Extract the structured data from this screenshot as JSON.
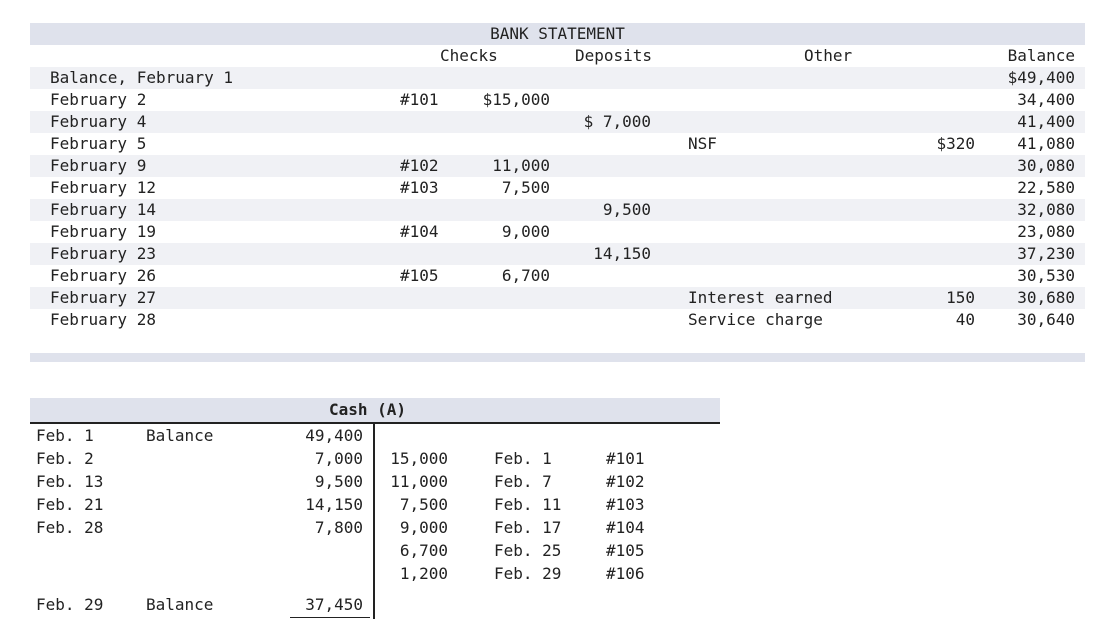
{
  "bank_statement": {
    "title": "BANK STATEMENT",
    "headers": {
      "checks": "Checks",
      "deposits": "Deposits",
      "other": "Other",
      "balance": "Balance"
    },
    "rows": [
      {
        "date": "Balance, February 1",
        "check_no": "",
        "check_amt": "",
        "deposit": "",
        "other_desc": "",
        "other_amt": "",
        "balance": "$49,400"
      },
      {
        "date": "February 2",
        "check_no": "#101",
        "check_amt": "$15,000",
        "deposit": "",
        "other_desc": "",
        "other_amt": "",
        "balance": "34,400"
      },
      {
        "date": "February 4",
        "check_no": "",
        "check_amt": "",
        "deposit": "$ 7,000",
        "other_desc": "",
        "other_amt": "",
        "balance": "41,400"
      },
      {
        "date": "February 5",
        "check_no": "",
        "check_amt": "",
        "deposit": "",
        "other_desc": "NSF",
        "other_amt": "$320",
        "balance": "41,080"
      },
      {
        "date": "February 9",
        "check_no": "#102",
        "check_amt": "11,000",
        "deposit": "",
        "other_desc": "",
        "other_amt": "",
        "balance": "30,080"
      },
      {
        "date": "February 12",
        "check_no": "#103",
        "check_amt": "7,500",
        "deposit": "",
        "other_desc": "",
        "other_amt": "",
        "balance": "22,580"
      },
      {
        "date": "February 14",
        "check_no": "",
        "check_amt": "",
        "deposit": "9,500",
        "other_desc": "",
        "other_amt": "",
        "balance": "32,080"
      },
      {
        "date": "February 19",
        "check_no": "#104",
        "check_amt": "9,000",
        "deposit": "",
        "other_desc": "",
        "other_amt": "",
        "balance": "23,080"
      },
      {
        "date": "February 23",
        "check_no": "",
        "check_amt": "",
        "deposit": "14,150",
        "other_desc": "",
        "other_amt": "",
        "balance": "37,230"
      },
      {
        "date": "February 26",
        "check_no": "#105",
        "check_amt": "6,700",
        "deposit": "",
        "other_desc": "",
        "other_amt": "",
        "balance": "30,530"
      },
      {
        "date": "February 27",
        "check_no": "",
        "check_amt": "",
        "deposit": "",
        "other_desc": "Interest earned",
        "other_amt": "150",
        "balance": "30,680"
      },
      {
        "date": "February 28",
        "check_no": "",
        "check_amt": "",
        "deposit": "",
        "other_desc": "Service charge",
        "other_amt": "40",
        "balance": "30,640"
      }
    ]
  },
  "cash_account": {
    "title": "Cash (A)",
    "debits": [
      {
        "date": "Feb. 1",
        "desc": "Balance",
        "amount": "49,400"
      },
      {
        "date": "Feb. 2",
        "desc": "",
        "amount": "7,000"
      },
      {
        "date": "Feb. 13",
        "desc": "",
        "amount": "9,500"
      },
      {
        "date": "Feb. 21",
        "desc": "",
        "amount": "14,150"
      },
      {
        "date": "Feb. 28",
        "desc": "",
        "amount": "7,800"
      }
    ],
    "credits": [
      {
        "amount": "15,000",
        "date": "Feb. 1",
        "ref": "#101"
      },
      {
        "amount": "11,000",
        "date": "Feb. 7",
        "ref": "#102"
      },
      {
        "amount": "7,500",
        "date": "Feb. 11",
        "ref": "#103"
      },
      {
        "amount": "9,000",
        "date": "Feb. 17",
        "ref": "#104"
      },
      {
        "amount": "6,700",
        "date": "Feb. 25",
        "ref": "#105"
      },
      {
        "amount": "1,200",
        "date": "Feb. 29",
        "ref": "#106"
      }
    ],
    "ending": {
      "date": "Feb. 29",
      "desc": "Balance",
      "amount": "37,450"
    }
  }
}
